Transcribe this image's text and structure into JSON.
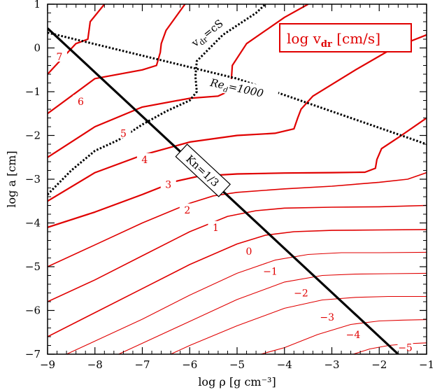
{
  "chart_data": {
    "type": "line",
    "title": "",
    "xlabel": "log ρ [g cm⁻³]",
    "ylabel": "log a [cm]",
    "xlim": [
      -9,
      -1
    ],
    "ylim": [
      -7,
      1
    ],
    "xticks": [
      "−9",
      "−8",
      "−7",
      "−6",
      "−5",
      "−4",
      "−3",
      "−2",
      "−1"
    ],
    "yticks": [
      "1",
      "0",
      "−1",
      "−2",
      "−3",
      "−4",
      "−5",
      "−6",
      "−7"
    ],
    "legend": {
      "text": "log v",
      "sub": "dr",
      "unit": " [cm/s]",
      "placement": "top-right"
    },
    "colors": {
      "contours": "#e00000",
      "boundaries": "#000000"
    },
    "contours": [
      {
        "label": "7",
        "label_x": -8.75,
        "label_y": -0.2,
        "break_x": -8.15,
        "drho_hi": 0.1,
        "points": [
          [
            -9,
            -0.6
          ],
          [
            -8.4,
            0.1
          ],
          [
            -8.15,
            0.2
          ],
          [
            -8.1,
            0.6
          ],
          [
            -7.8,
            1.0
          ]
        ]
      },
      {
        "label": "6",
        "label_x": -8.3,
        "label_y": -1.22,
        "points": [
          [
            -9,
            -1.5
          ],
          [
            -8,
            -0.7
          ],
          [
            -7.0,
            -0.5
          ],
          [
            -6.7,
            -0.4
          ],
          [
            -6.62,
            -0.1
          ],
          [
            -6.6,
            0.1
          ],
          [
            -6.5,
            0.4
          ],
          [
            -6.1,
            1.0
          ]
        ]
      },
      {
        "label": "5",
        "label_x": -7.4,
        "label_y": -1.95,
        "points": [
          [
            -9,
            -2.5
          ],
          [
            -8,
            -1.8
          ],
          [
            -7,
            -1.35
          ],
          [
            -6,
            -1.15
          ],
          [
            -5.4,
            -1.1
          ],
          [
            -5.2,
            -1.0
          ],
          [
            -5.12,
            -0.7
          ],
          [
            -5.1,
            -0.4
          ],
          [
            -4.8,
            0.1
          ],
          [
            -4.0,
            0.7
          ],
          [
            -3.5,
            1.0
          ]
        ]
      },
      {
        "label": "4",
        "label_x": -6.95,
        "label_y": -2.55,
        "points": [
          [
            -9,
            -3.5
          ],
          [
            -8,
            -2.85
          ],
          [
            -7,
            -2.45
          ],
          [
            -6,
            -2.15
          ],
          [
            -5,
            -2.0
          ],
          [
            -4.2,
            -1.95
          ],
          [
            -3.8,
            -1.85
          ],
          [
            -3.72,
            -1.6
          ],
          [
            -3.65,
            -1.4
          ],
          [
            -3.4,
            -1.1
          ],
          [
            -2.5,
            -0.5
          ],
          [
            -1.7,
            0.0
          ],
          [
            -1.0,
            0.3
          ]
        ]
      },
      {
        "label": "3",
        "label_x": -6.45,
        "label_y": -3.12,
        "points": [
          [
            -9,
            -4.1
          ],
          [
            -8,
            -3.75
          ],
          [
            -7,
            -3.35
          ],
          [
            -6.3,
            -3.05
          ],
          [
            -5.8,
            -2.93
          ],
          [
            -5.0,
            -2.88
          ],
          [
            -4,
            -2.86
          ],
          [
            -3,
            -2.85
          ],
          [
            -2.3,
            -2.84
          ],
          [
            -2.08,
            -2.75
          ],
          [
            -2.05,
            -2.55
          ],
          [
            -1.95,
            -2.3
          ],
          [
            -1.6,
            -2.05
          ],
          [
            -1.0,
            -1.6
          ]
        ]
      },
      {
        "label": "2",
        "label_x": -6.05,
        "label_y": -3.7,
        "points": [
          [
            -9,
            -5.0
          ],
          [
            -8,
            -4.5
          ],
          [
            -7,
            -4.0
          ],
          [
            -6,
            -3.55
          ],
          [
            -5.5,
            -3.38
          ],
          [
            -5,
            -3.3
          ],
          [
            -4,
            -3.22
          ],
          [
            -3,
            -3.16
          ],
          [
            -2,
            -3.07
          ],
          [
            -1.4,
            -3.0
          ],
          [
            -1,
            -2.85
          ]
        ]
      },
      {
        "label": "1",
        "label_x": -5.45,
        "label_y": -4.1,
        "points": [
          [
            -9,
            -5.8
          ],
          [
            -8,
            -5.3
          ],
          [
            -7,
            -4.75
          ],
          [
            -6,
            -4.2
          ],
          [
            -5.2,
            -3.85
          ],
          [
            -4.6,
            -3.72
          ],
          [
            -4,
            -3.66
          ],
          [
            -3,
            -3.64
          ],
          [
            -2,
            -3.63
          ],
          [
            -1,
            -3.6
          ]
        ]
      },
      {
        "label": "0",
        "label_x": -4.75,
        "label_y": -4.65,
        "points": [
          [
            -9,
            -6.6
          ],
          [
            -8,
            -6.05
          ],
          [
            -7,
            -5.5
          ],
          [
            -6,
            -4.95
          ],
          [
            -5,
            -4.48
          ],
          [
            -4.4,
            -4.28
          ],
          [
            -3.8,
            -4.2
          ],
          [
            -3,
            -4.17
          ],
          [
            -2,
            -4.16
          ],
          [
            -1,
            -4.15
          ]
        ]
      },
      {
        "label": "−1",
        "label_x": -4.3,
        "label_y": -5.1,
        "points": [
          [
            -8.6,
            -7.0
          ],
          [
            -8,
            -6.7
          ],
          [
            -7,
            -6.2
          ],
          [
            -6,
            -5.65
          ],
          [
            -5,
            -5.15
          ],
          [
            -4.2,
            -4.85
          ],
          [
            -3.5,
            -4.72
          ],
          [
            -2.8,
            -4.68
          ],
          [
            -2,
            -4.68
          ],
          [
            -1,
            -4.67
          ]
        ]
      },
      {
        "label": "−2",
        "label_x": -3.65,
        "label_y": -5.6,
        "points": [
          [
            -7.5,
            -7.0
          ],
          [
            -7,
            -6.75
          ],
          [
            -6,
            -6.25
          ],
          [
            -5,
            -5.75
          ],
          [
            -4,
            -5.35
          ],
          [
            -3.2,
            -5.2
          ],
          [
            -2.5,
            -5.17
          ],
          [
            -1.8,
            -5.16
          ],
          [
            -1,
            -5.15
          ]
        ]
      },
      {
        "label": "−3",
        "label_x": -3.1,
        "label_y": -6.15,
        "points": [
          [
            -6.4,
            -7.0
          ],
          [
            -6,
            -6.8
          ],
          [
            -5,
            -6.35
          ],
          [
            -4,
            -5.95
          ],
          [
            -3.2,
            -5.76
          ],
          [
            -2.5,
            -5.7
          ],
          [
            -1.8,
            -5.68
          ],
          [
            -1,
            -5.68
          ]
        ]
      },
      {
        "label": "−4",
        "label_x": -2.55,
        "label_y": -6.55,
        "points": [
          [
            -4.5,
            -7.0
          ],
          [
            -4,
            -6.85
          ],
          [
            -3.3,
            -6.55
          ],
          [
            -2.6,
            -6.32
          ],
          [
            -2.0,
            -6.24
          ],
          [
            -1.5,
            -6.22
          ],
          [
            -1,
            -6.21
          ]
        ]
      },
      {
        "label": "−5",
        "label_x": -1.45,
        "label_y": -6.85,
        "points": [
          [
            -2.55,
            -7.0
          ],
          [
            -2.2,
            -6.88
          ],
          [
            -1.8,
            -6.8
          ],
          [
            -1.4,
            -6.76
          ],
          [
            -1,
            -6.74
          ]
        ]
      }
    ],
    "boundaries": [
      {
        "name": "knudsen",
        "label": "Kn=1/3",
        "style": "solid",
        "label_x": -5.72,
        "label_y": -2.8,
        "points": [
          [
            -9,
            0.45
          ],
          [
            -1.6,
            -7.0
          ]
        ]
      },
      {
        "name": "sonic",
        "label": "v",
        "label_sub": "dr",
        "label_tail": "=cS",
        "style": "dotted",
        "label_x": -5.6,
        "label_y": 0.3,
        "points": [
          [
            -9,
            -3.35
          ],
          [
            -8.5,
            -2.8
          ],
          [
            -8,
            -2.35
          ],
          [
            -7.5,
            -2.1
          ],
          [
            -7,
            -1.75
          ],
          [
            -6.5,
            -1.45
          ],
          [
            -6,
            -1.2
          ],
          [
            -5.85,
            -1.0
          ],
          [
            -5.88,
            -0.65
          ],
          [
            -5.85,
            -0.3
          ],
          [
            -5.3,
            0.3
          ],
          [
            -4.6,
            0.8
          ],
          [
            -4.4,
            1.0
          ]
        ]
      },
      {
        "name": "reynolds",
        "label": "Re",
        "label_sub": "d",
        "label_tail": "=1000",
        "style": "dotted",
        "label_x": -5.0,
        "label_y": -1.0,
        "points": [
          [
            -9,
            0.35
          ],
          [
            -5,
            -0.7
          ],
          [
            -1,
            -2.2
          ]
        ]
      }
    ]
  }
}
